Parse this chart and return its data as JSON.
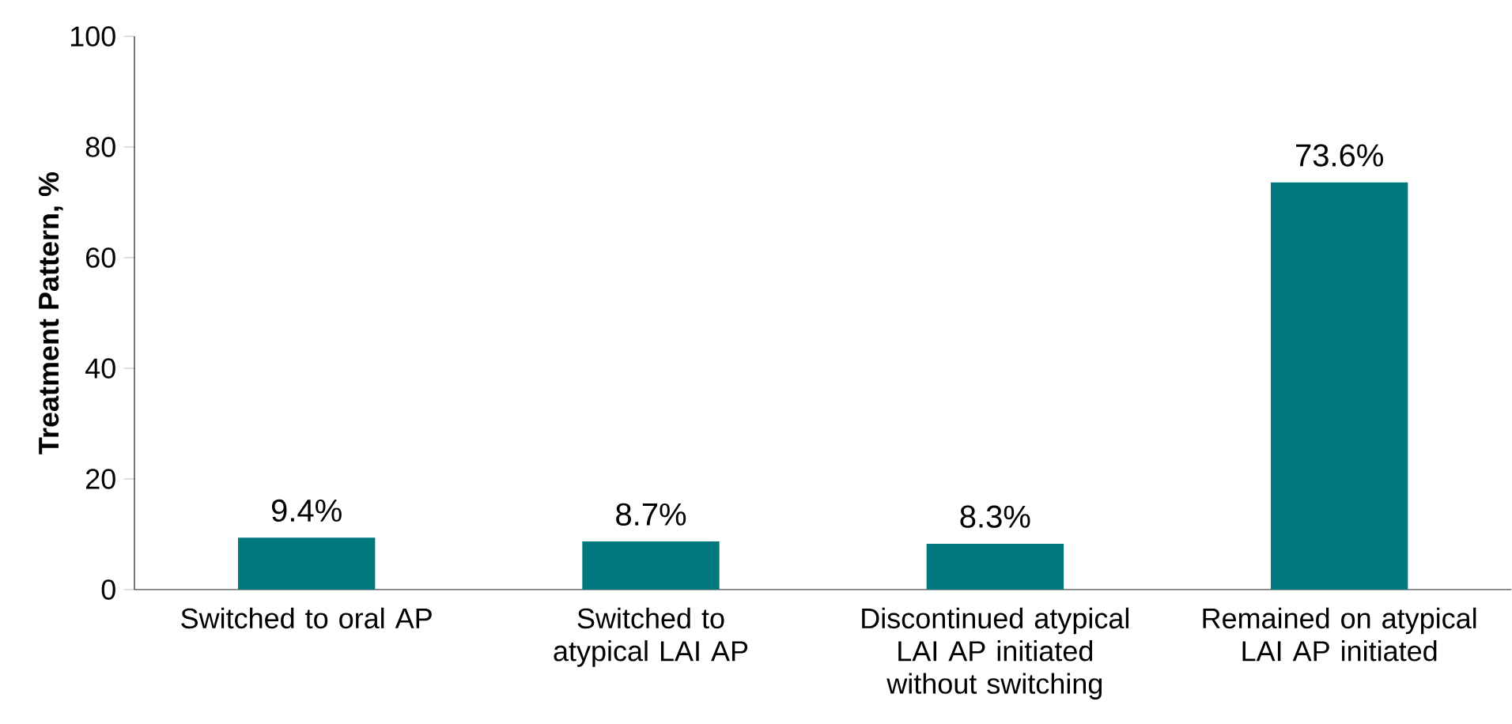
{
  "chart_data": {
    "type": "bar",
    "ylabel": "Treatment Pattern, %",
    "categories": [
      "Switched to oral AP",
      "Switched to atypical LAI AP",
      "Discontinued atypical LAI AP initiated without switching",
      "Remained on atypical LAI AP initiated"
    ],
    "values": [
      9.4,
      8.7,
      8.3,
      73.6
    ],
    "value_labels": [
      "9.4%",
      "8.7%",
      "8.3%",
      "73.6%"
    ],
    "color": "#00787d",
    "ylim": [
      0,
      100
    ],
    "yticks": [
      0,
      20,
      40,
      60,
      80,
      100
    ],
    "grid": false
  }
}
